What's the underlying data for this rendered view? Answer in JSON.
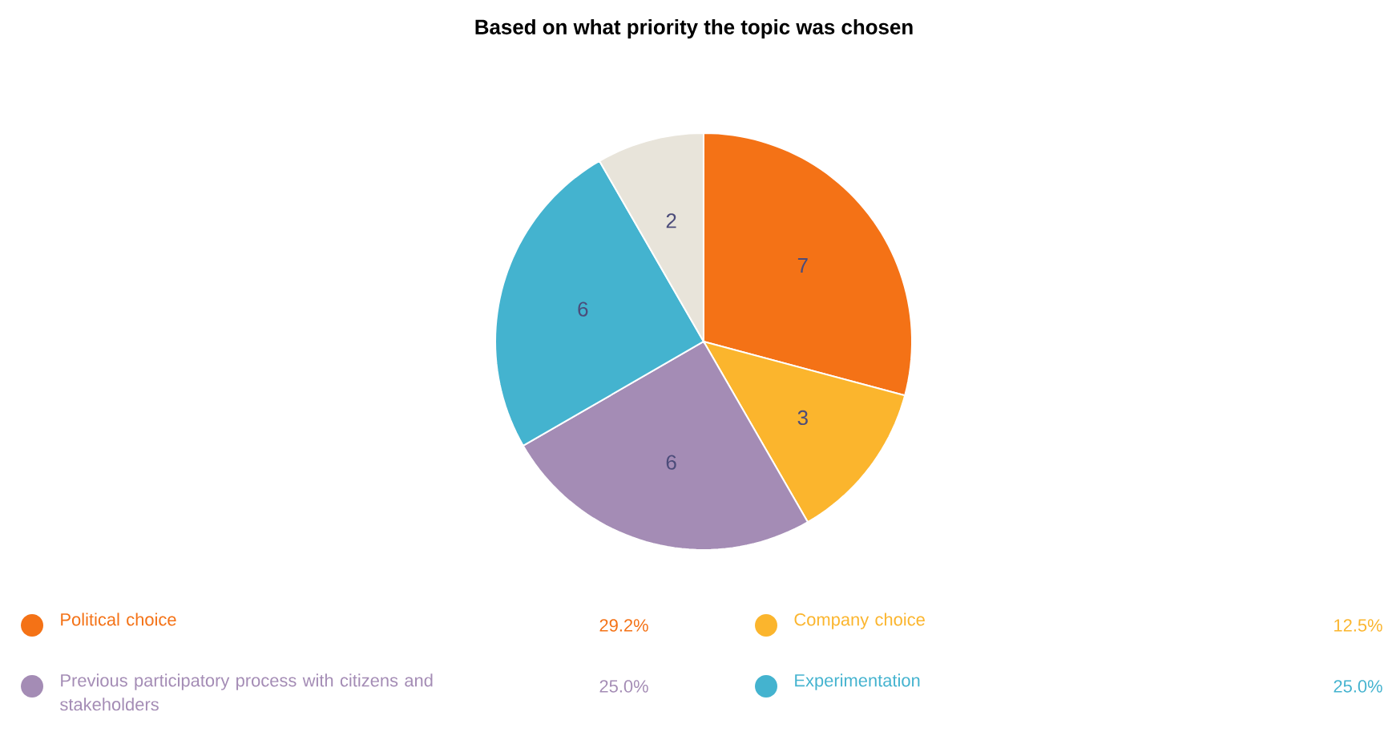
{
  "chart_data": {
    "type": "pie",
    "title": "Based on what priority the topic was chosen",
    "categories": [
      "Political choice",
      "Company choice",
      "Previous participatory process with citizens and stakeholders",
      "Experimentation",
      null
    ],
    "values": [
      7,
      3,
      6,
      6,
      2
    ],
    "colors": [
      "#f47216",
      "#fbb52d",
      "#a48cb5",
      "#44b3cf",
      "#e8e4da"
    ],
    "data_labels": true,
    "legend": "bottom",
    "annotations": [
      "29.2%",
      "12.5%",
      "25.0%",
      "25.0%"
    ]
  }
}
